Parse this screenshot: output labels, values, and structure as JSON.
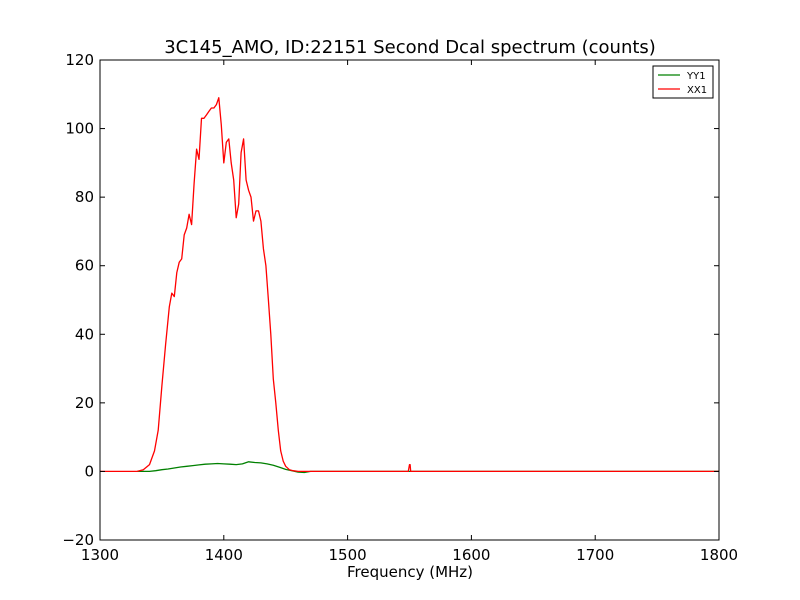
{
  "chart_data": {
    "type": "line",
    "title": "3C145_AMO, ID:22151 Second Dcal spectrum (counts)",
    "xlabel": "Frequency (MHz)",
    "ylabel": "",
    "xlim": [
      1300,
      1800
    ],
    "ylim": [
      -20,
      120
    ],
    "xticks": [
      1300,
      1400,
      1500,
      1600,
      1700,
      1800
    ],
    "yticks": [
      -20,
      0,
      20,
      40,
      60,
      80,
      100,
      120
    ],
    "xtick_labels": [
      "1300",
      "1400",
      "1500",
      "1600",
      "1700",
      "1800"
    ],
    "ytick_labels": [
      "−20",
      "0",
      "20",
      "40",
      "60",
      "80",
      "100",
      "120"
    ],
    "grid": false,
    "legend_position": "top-right",
    "series": [
      {
        "name": "YY1",
        "color": "#008000",
        "x": [
          1330,
          1340,
          1345,
          1350,
          1355,
          1360,
          1365,
          1370,
          1375,
          1380,
          1385,
          1390,
          1395,
          1400,
          1405,
          1410,
          1415,
          1420,
          1425,
          1430,
          1435,
          1440,
          1445,
          1450,
          1455,
          1460,
          1465,
          1470,
          1500,
          1550,
          1600,
          1650,
          1700,
          1750,
          1800
        ],
        "y": [
          0,
          0,
          0.2,
          0.5,
          0.7,
          1.0,
          1.3,
          1.5,
          1.7,
          1.9,
          2.1,
          2.2,
          2.3,
          2.2,
          2.1,
          2.0,
          2.2,
          2.8,
          2.6,
          2.5,
          2.2,
          1.8,
          1.2,
          0.6,
          0.2,
          -0.2,
          -0.3,
          0,
          0,
          0,
          0,
          0,
          0,
          0,
          0
        ]
      },
      {
        "name": "XX1",
        "color": "#ff0000",
        "x": [
          1300,
          1330,
          1335,
          1340,
          1344,
          1347,
          1350,
          1353,
          1356,
          1358,
          1360,
          1362,
          1364,
          1366,
          1368,
          1370,
          1372,
          1374,
          1376,
          1378,
          1380,
          1382,
          1384,
          1386,
          1388,
          1390,
          1392,
          1394,
          1396,
          1398,
          1400,
          1402,
          1404,
          1406,
          1408,
          1410,
          1412,
          1414,
          1416,
          1418,
          1420,
          1422,
          1424,
          1426,
          1428,
          1430,
          1432,
          1434,
          1436,
          1438,
          1440,
          1442,
          1444,
          1446,
          1448,
          1450,
          1453,
          1456,
          1460,
          1465,
          1470,
          1549,
          1550,
          1550.5,
          1551,
          1552,
          1600,
          1650,
          1700,
          1750,
          1800
        ],
        "y": [
          0,
          0,
          0.5,
          2,
          6,
          12,
          25,
          37,
          48,
          52,
          51,
          58,
          61,
          62,
          69,
          71,
          75,
          72,
          84,
          94,
          91,
          103,
          103,
          104,
          105,
          106,
          106,
          107,
          109,
          101,
          90,
          96,
          97,
          90,
          85,
          74,
          78,
          93,
          97,
          85,
          82,
          80,
          73,
          76,
          76,
          73,
          65,
          60,
          50,
          40,
          27,
          20,
          12,
          6,
          3,
          1.5,
          0.5,
          0.2,
          0,
          0,
          0,
          0,
          2,
          2,
          0,
          0,
          0,
          0,
          0,
          0,
          0
        ]
      }
    ]
  }
}
